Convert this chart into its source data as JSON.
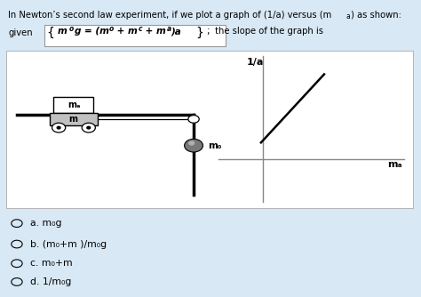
{
  "bg_color": "#d8e8f5",
  "panel_color": "#ffffff",
  "choices": [
    "a. m₀g",
    "b. (m₀+m⁣ )/m₀g",
    "c. m₀+m⁣",
    "d. 1/m₀g"
  ],
  "label_ma": "mₐ",
  "label_mc": "m⁣",
  "label_mo": "m₀",
  "graph_ylabel": "1/a",
  "graph_xlabel": "mₐ"
}
